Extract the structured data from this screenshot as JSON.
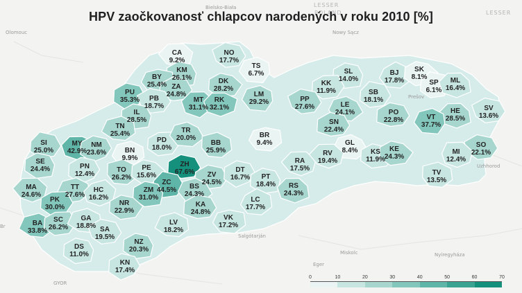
{
  "title": "HPV zaočkovanosť chlapcov narodených v roku 2010 [%]",
  "basemap_labels": [
    "Olomouc",
    "LESSER",
    "POLAND",
    "Bielsko-Biała",
    "Nowy Sącz",
    "LESSER",
    "Prešov",
    "Miskolc",
    "Eger",
    "Salgótarján",
    "GYOR",
    "Nyíregyháza",
    "Uzhhorod",
    "Slovakia",
    "Br"
  ],
  "colors": {
    "scale": [
      "#eaf5f3",
      "#c8e6e1",
      "#a6d6ce",
      "#83c6bb",
      "#5fb5a7",
      "#3aa392",
      "#14907d"
    ],
    "border": "#ffffff",
    "background": "#f3f3f1"
  },
  "legend": {
    "ticks": [
      "0",
      "10",
      "20",
      "30",
      "40",
      "50",
      "60",
      "70"
    ],
    "min": 0,
    "max": 70
  },
  "districts": [
    {
      "code": "CA",
      "value": "9.2%"
    },
    {
      "code": "NO",
      "value": "17.7%"
    },
    {
      "code": "KM",
      "value": "26.1%"
    },
    {
      "code": "TS",
      "value": "6.7%"
    },
    {
      "code": "BY",
      "value": "25.4%"
    },
    {
      "code": "ZA",
      "value": "24.8%"
    },
    {
      "code": "DK",
      "value": "28.2%"
    },
    {
      "code": "PU",
      "value": "35.3%"
    },
    {
      "code": "PB",
      "value": "18.7%"
    },
    {
      "code": "MT",
      "value": "31.1%"
    },
    {
      "code": "RK",
      "value": "32.1%"
    },
    {
      "code": "LM",
      "value": "29.2%"
    },
    {
      "code": "IL",
      "value": "28.5%"
    },
    {
      "code": "TN",
      "value": "25.4%"
    },
    {
      "code": "SL",
      "value": "14.0%"
    },
    {
      "code": "KK",
      "value": "11.9%"
    },
    {
      "code": "BJ",
      "value": "17.8%"
    },
    {
      "code": "SK",
      "value": "8.1%"
    },
    {
      "code": "SP",
      "value": "6.1%"
    },
    {
      "code": "ML",
      "value": "16.4%"
    },
    {
      "code": "PP",
      "value": "27.6%"
    },
    {
      "code": "SB",
      "value": "18.1%"
    },
    {
      "code": "LE",
      "value": "24.1%"
    },
    {
      "code": "PO",
      "value": "22.8%"
    },
    {
      "code": "HE",
      "value": "28.5%"
    },
    {
      "code": "SV",
      "value": "13.6%"
    },
    {
      "code": "VT",
      "value": "37.7%"
    },
    {
      "code": "SN",
      "value": "22.4%"
    },
    {
      "code": "SI",
      "value": "25.0%"
    },
    {
      "code": "MY",
      "value": "42.9%"
    },
    {
      "code": "NM",
      "value": "23.6%"
    },
    {
      "code": "PD",
      "value": "18.0%"
    },
    {
      "code": "TR",
      "value": "20.0%"
    },
    {
      "code": "BB",
      "value": "25.9%"
    },
    {
      "code": "BR",
      "value": "9.4%"
    },
    {
      "code": "GL",
      "value": "8.4%"
    },
    {
      "code": "SO",
      "value": "22.1%"
    },
    {
      "code": "BN",
      "value": "9.9%"
    },
    {
      "code": "SE",
      "value": "24.4%"
    },
    {
      "code": "PN",
      "value": "12.4%"
    },
    {
      "code": "TO",
      "value": "26.2%"
    },
    {
      "code": "PE",
      "value": "15.6%"
    },
    {
      "code": "ZH",
      "value": "67.6%"
    },
    {
      "code": "ZV",
      "value": "24.5%"
    },
    {
      "code": "DT",
      "value": "16.7%"
    },
    {
      "code": "PT",
      "value": "18.4%"
    },
    {
      "code": "RA",
      "value": "17.5%"
    },
    {
      "code": "RV",
      "value": "19.4%"
    },
    {
      "code": "KS",
      "value": "11.9%"
    },
    {
      "code": "KE",
      "value": "24.3%"
    },
    {
      "code": "MI",
      "value": "12.4%"
    },
    {
      "code": "TV",
      "value": "13.5%"
    },
    {
      "code": "MA",
      "value": "24.6%"
    },
    {
      "code": "TT",
      "value": "27.6%"
    },
    {
      "code": "HC",
      "value": "16.2%"
    },
    {
      "code": "ZC",
      "value": "44.5%"
    },
    {
      "code": "BS",
      "value": "24.3%"
    },
    {
      "code": "ZM",
      "value": "31.0%"
    },
    {
      "code": "RS",
      "value": "24.3%"
    },
    {
      "code": "PK",
      "value": "30.0%"
    },
    {
      "code": "NR",
      "value": "22.9%"
    },
    {
      "code": "KA",
      "value": "24.8%"
    },
    {
      "code": "LC",
      "value": "17.7%"
    },
    {
      "code": "BA",
      "value": "33.8%"
    },
    {
      "code": "SC",
      "value": "26.2%"
    },
    {
      "code": "GA",
      "value": "18.8%"
    },
    {
      "code": "SA",
      "value": "19.5%"
    },
    {
      "code": "LV",
      "value": "18.2%"
    },
    {
      "code": "VK",
      "value": "17.2%"
    },
    {
      "code": "DS",
      "value": "11.0%"
    },
    {
      "code": "NZ",
      "value": "20.3%"
    },
    {
      "code": "KN",
      "value": "17.4%"
    }
  ]
}
